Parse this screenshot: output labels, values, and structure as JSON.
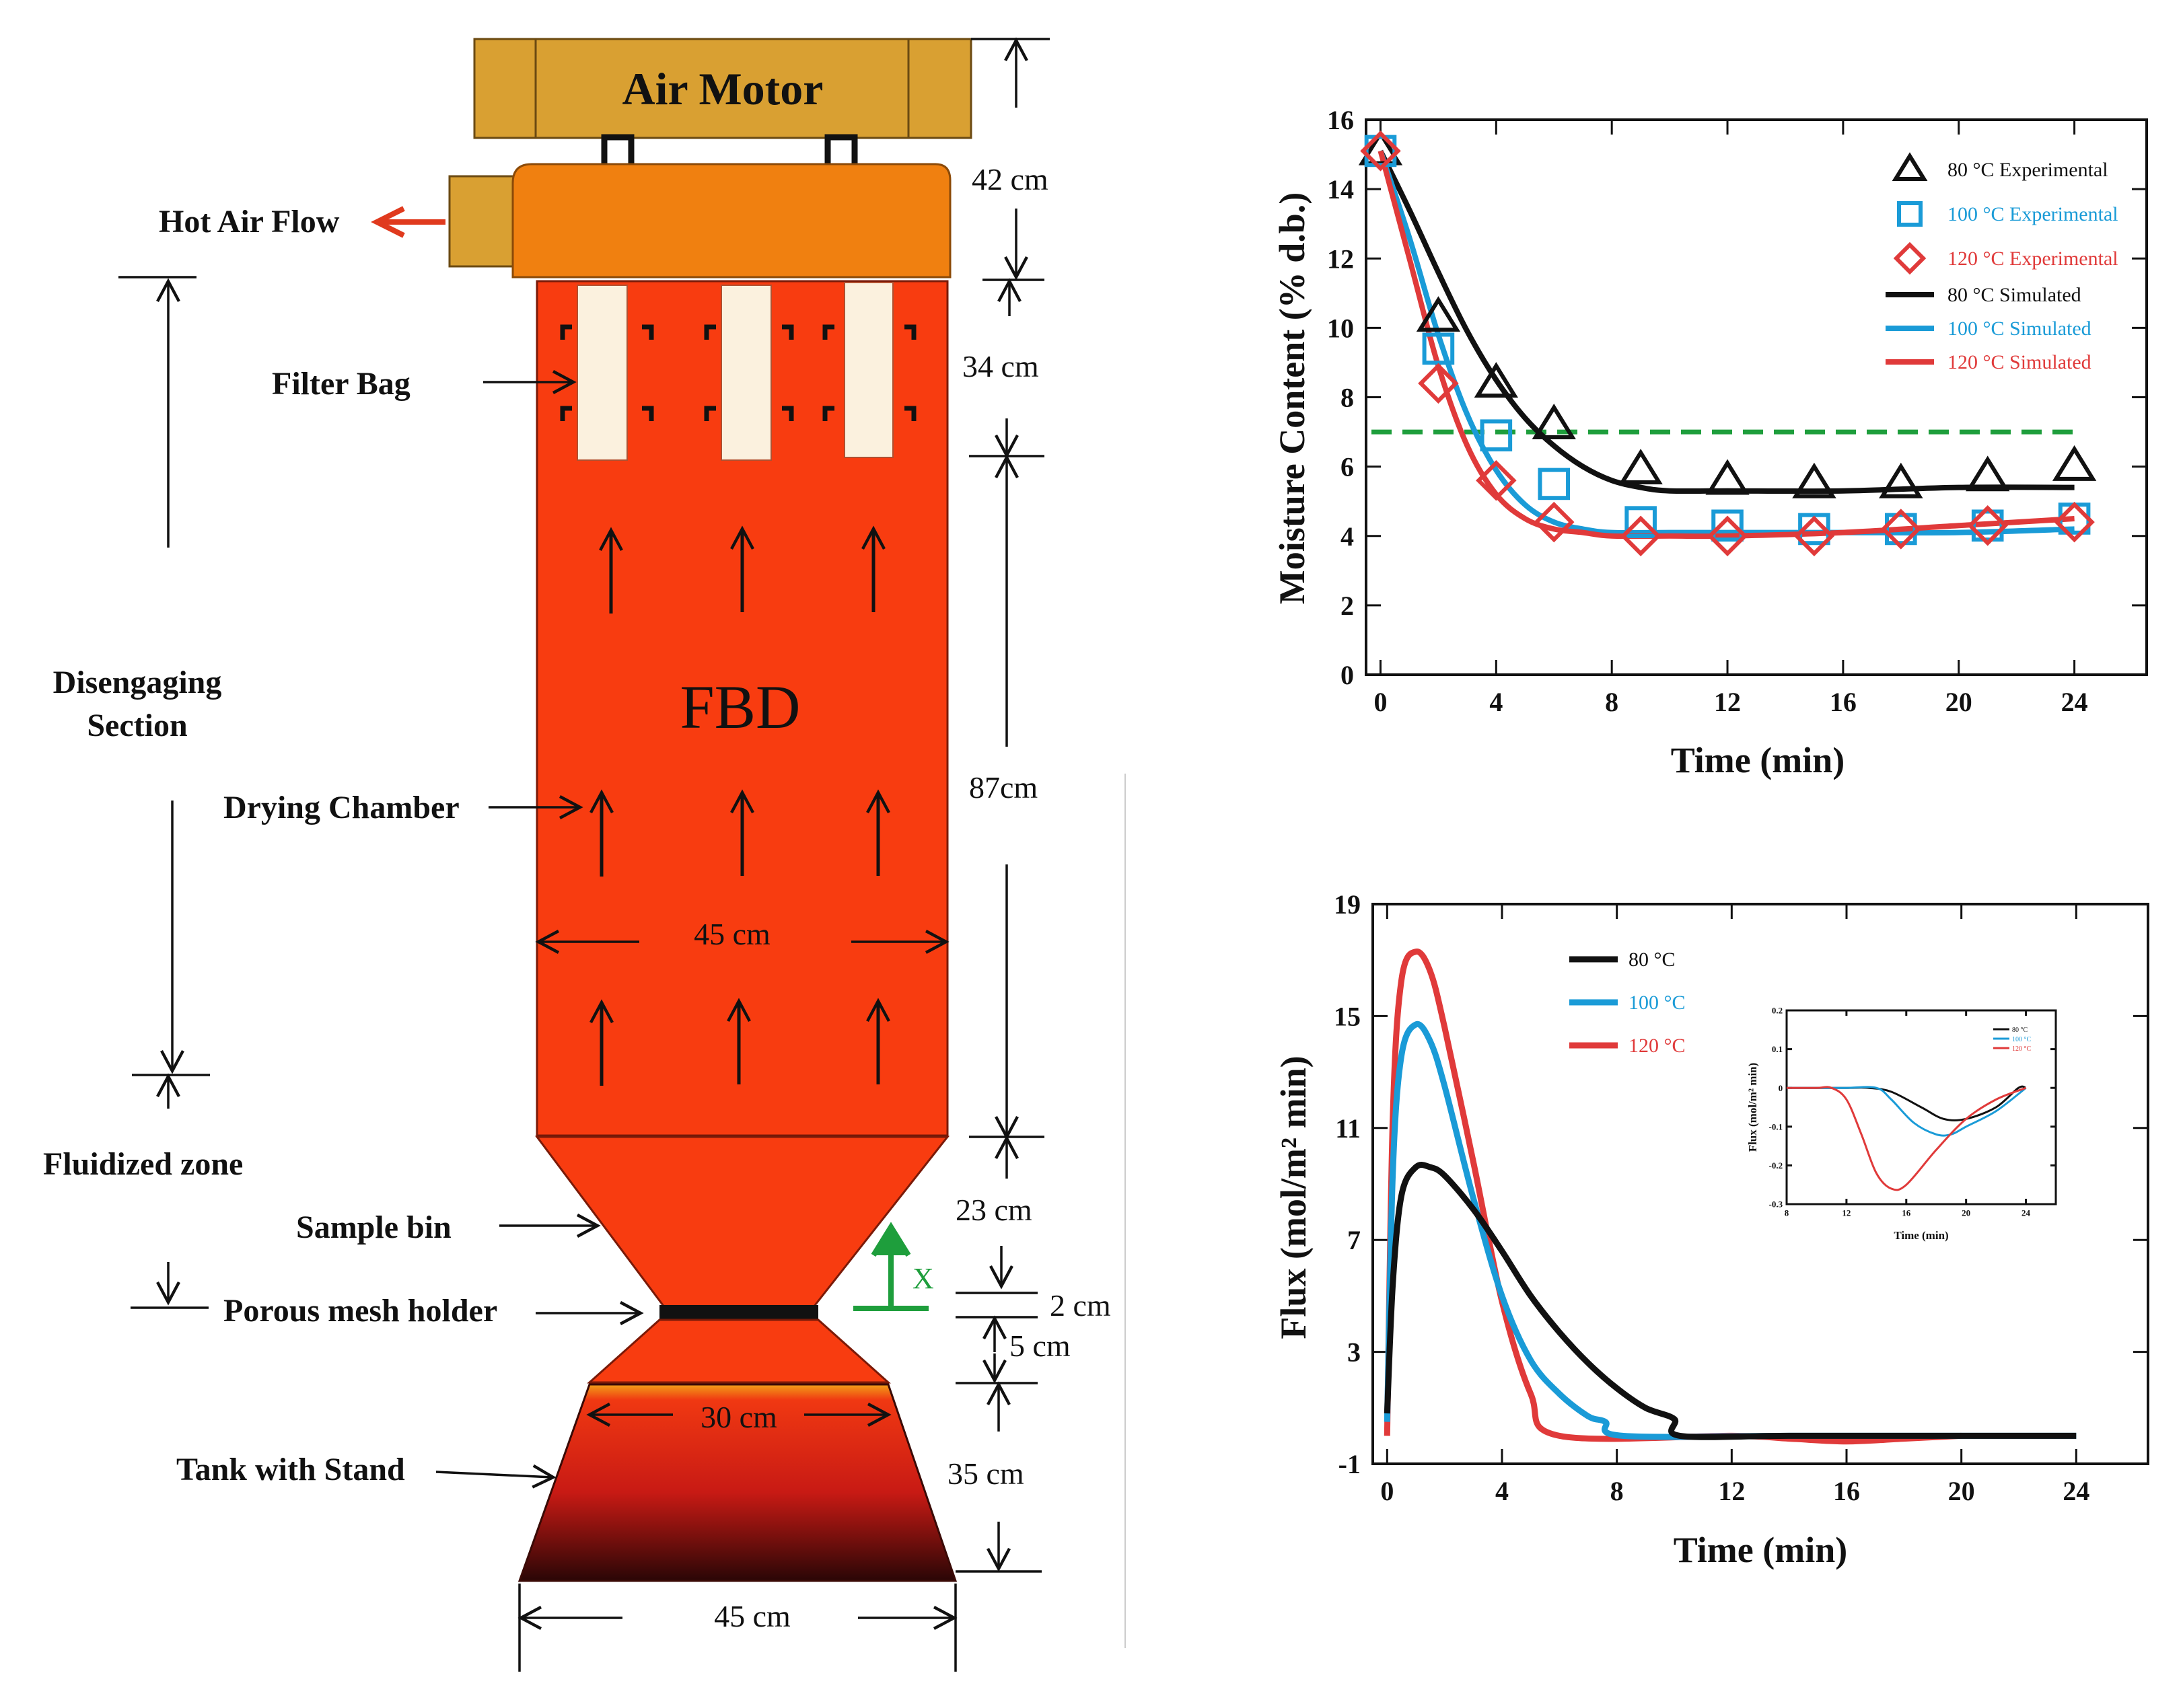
{
  "diagram": {
    "air_motor": "Air Motor",
    "hot_air_flow": "Hot Air Flow",
    "filter_bag": "Filter Bag",
    "disengaging_line1": "Disengaging",
    "disengaging_line2": "Section",
    "drying_chamber": "Drying  Chamber",
    "fluidized_zone": "Fluidized  zone",
    "sample_bin": "Sample bin",
    "porous_mesh": "Porous mesh holder",
    "tank_stand": "Tank with Stand",
    "fbd": "FBD",
    "x_axis": "X",
    "dims": {
      "d42": "42 cm",
      "d34": "34 cm",
      "d87": "87cm",
      "d45_mid": "45 cm",
      "d23": "23 cm",
      "d2": "2 cm",
      "d5": "5 cm",
      "d30": "30 cm",
      "d35": "35 cm",
      "d45_bottom": "45 cm"
    },
    "colors": {
      "motor": "#D9A032",
      "hood": "#F08010",
      "chamber": "#F83C10",
      "filter_bag": "#FBF1DE",
      "mesh": "#111111",
      "x_arrow": "#1E9E3C",
      "hot_air_arrow": "#E03A1E"
    }
  },
  "chart_data": [
    {
      "type": "scatter",
      "xlabel": "Time (min)",
      "ylabel": "Moisture Content (% d.b.)",
      "xlim": [
        -0.5,
        26.5
      ],
      "ylim": [
        0,
        16
      ],
      "xticks": [
        0,
        4,
        8,
        12,
        16,
        20,
        24
      ],
      "yticks": [
        0,
        2,
        4,
        6,
        8,
        10,
        12,
        14,
        16
      ],
      "reference_line": {
        "y": 7,
        "color": "#1E9E3C",
        "style": "dashed"
      },
      "legend_position": "top-right",
      "series": [
        {
          "name": "80 °C Experimental",
          "kind": "markers",
          "marker": "triangle",
          "color": "#111111",
          "x": [
            0,
            2,
            4,
            6,
            9,
            12,
            15,
            18,
            21,
            24
          ],
          "y": [
            15.1,
            10.3,
            8.4,
            7.2,
            5.9,
            5.6,
            5.5,
            5.5,
            5.7,
            6.0
          ]
        },
        {
          "name": "100 °C Experimental",
          "kind": "markers",
          "marker": "square",
          "color": "#1A9BD7",
          "x": [
            0,
            2,
            4,
            6,
            9,
            12,
            15,
            18,
            21,
            24
          ],
          "y": [
            15.1,
            9.4,
            6.9,
            5.5,
            4.4,
            4.3,
            4.2,
            4.2,
            4.3,
            4.5
          ]
        },
        {
          "name": "120 °C Experimental",
          "kind": "markers",
          "marker": "diamond",
          "color": "#E03A3A",
          "x": [
            0,
            2,
            4,
            6,
            9,
            12,
            15,
            18,
            21,
            24
          ],
          "y": [
            15.1,
            8.4,
            5.6,
            4.4,
            4.0,
            4.0,
            4.0,
            4.2,
            4.3,
            4.4
          ]
        },
        {
          "name": "80 °C Simulated",
          "kind": "line",
          "color": "#111111",
          "x": [
            0,
            1,
            2,
            3,
            4,
            5,
            6,
            7,
            8,
            9,
            10,
            12,
            16,
            20,
            24
          ],
          "y": [
            15.1,
            13.4,
            11.6,
            9.9,
            8.5,
            7.4,
            6.6,
            6.0,
            5.6,
            5.4,
            5.3,
            5.3,
            5.3,
            5.4,
            5.4
          ]
        },
        {
          "name": "100 °C Simulated",
          "kind": "line",
          "color": "#1A9BD7",
          "x": [
            0,
            1,
            2,
            3,
            4,
            5,
            6,
            7,
            8,
            10,
            12,
            16,
            20,
            24
          ],
          "y": [
            15.1,
            12.6,
            9.8,
            7.5,
            5.9,
            4.9,
            4.4,
            4.2,
            4.1,
            4.1,
            4.1,
            4.1,
            4.1,
            4.2
          ]
        },
        {
          "name": "120 °C Simulated",
          "kind": "line",
          "color": "#E03A3A",
          "x": [
            0,
            1,
            2,
            3,
            4,
            5,
            6,
            7,
            8,
            10,
            12,
            16,
            20,
            24
          ],
          "y": [
            15.1,
            12.0,
            8.9,
            6.6,
            5.2,
            4.5,
            4.2,
            4.1,
            4.0,
            4.0,
            4.0,
            4.1,
            4.3,
            4.5
          ]
        }
      ]
    },
    {
      "type": "line",
      "xlabel": "Time (min)",
      "ylabel": "Flux (mol/m² min)",
      "xlim": [
        -0.5,
        26.5
      ],
      "ylim": [
        -1,
        19
      ],
      "xticks": [
        0,
        4,
        8,
        12,
        16,
        20,
        24
      ],
      "yticks": [
        -1,
        3,
        7,
        11,
        15,
        19
      ],
      "legend_position": "top-left",
      "series": [
        {
          "name": "80 °C",
          "color": "#111111",
          "x": [
            0,
            0.2,
            0.5,
            1.0,
            1.5,
            2.0,
            3,
            4,
            5,
            6,
            7,
            8,
            9,
            10,
            10.2,
            14,
            20,
            24
          ],
          "y": [
            0.8,
            5.5,
            8.6,
            9.6,
            9.6,
            9.3,
            8.1,
            6.6,
            5.0,
            3.7,
            2.6,
            1.7,
            1.0,
            0.6,
            0,
            0,
            0,
            0
          ]
        },
        {
          "name": "100 °C",
          "color": "#1A9BD7",
          "x": [
            0,
            0.2,
            0.5,
            1.0,
            1.5,
            2,
            3,
            4,
            5,
            6,
            7,
            7.6,
            8.2,
            14,
            20,
            24
          ],
          "y": [
            0.5,
            9.5,
            13.6,
            14.7,
            14.1,
            12.5,
            8.5,
            5.0,
            2.7,
            1.5,
            0.7,
            0.5,
            0,
            0,
            0,
            0
          ]
        },
        {
          "name": "120 °C",
          "color": "#E03A3A",
          "x": [
            0,
            0.2,
            0.5,
            1.0,
            1.5,
            2,
            3,
            4,
            5,
            6,
            12,
            14,
            16,
            18,
            20
          ],
          "y": [
            0,
            11.5,
            16.3,
            17.3,
            16.6,
            14.6,
            9.8,
            4.8,
            1.5,
            0,
            0,
            -0.1,
            -0.2,
            -0.1,
            0
          ]
        }
      ],
      "inset": {
        "xlabel": "Time (min)",
        "ylabel": "Flux (mol/m² min)",
        "xlim": [
          8,
          26
        ],
        "ylim": [
          -0.3,
          0.2
        ],
        "xticks": [
          8,
          12,
          16,
          20,
          24
        ],
        "yticks": [
          -0.3,
          -0.2,
          -0.1,
          0,
          0.1,
          0.2
        ],
        "legend": [
          "80 °C",
          "100 °C",
          "120 °C"
        ],
        "series": [
          {
            "name": "80 °C",
            "color": "#111111",
            "x": [
              8,
              10,
              12,
              13.5,
              15,
              17,
              18.5,
              20,
              22,
              23.5,
              24
            ],
            "y": [
              0,
              0,
              0,
              0,
              -0.01,
              -0.05,
              -0.08,
              -0.08,
              -0.05,
              0,
              0
            ]
          },
          {
            "name": "100 °C",
            "color": "#1A9BD7",
            "x": [
              8,
              10,
              12,
              14,
              15,
              16.5,
              18,
              19,
              20,
              22,
              24
            ],
            "y": [
              0,
              0,
              0,
              0,
              -0.03,
              -0.09,
              -0.12,
              -0.12,
              -0.1,
              -0.06,
              0
            ]
          },
          {
            "name": "120 °C",
            "color": "#E03A3A",
            "x": [
              8,
              10,
              11,
              12,
              13,
              14,
              15,
              16,
              18,
              20,
              22,
              24
            ],
            "y": [
              0,
              0,
              0,
              -0.03,
              -0.12,
              -0.22,
              -0.26,
              -0.25,
              -0.16,
              -0.08,
              -0.03,
              0
            ]
          }
        ]
      }
    }
  ]
}
